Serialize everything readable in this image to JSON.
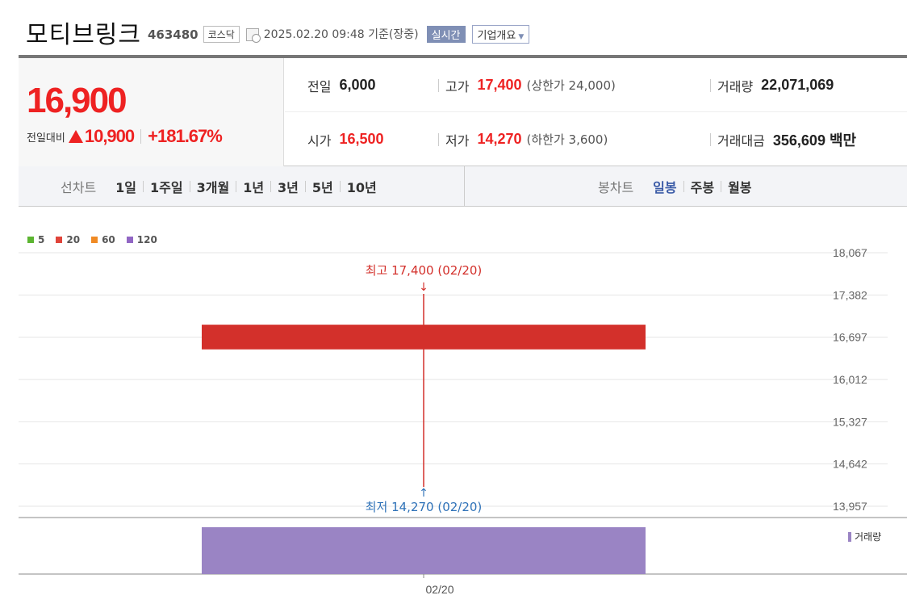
{
  "header": {
    "name": "모티브링크",
    "code": "463480",
    "market": "코스닥",
    "date": "2025.02.20 09:48  기준(장중)",
    "live": "실시간",
    "overview": "기업개요"
  },
  "summary": {
    "price": "16,900",
    "change_label": "전일대비",
    "change_amount": "10,900",
    "change_percent": "+181.67%",
    "prev_label": "전일",
    "prev": "6,000",
    "high_label": "고가",
    "high": "17,400",
    "upper_limit": "(상한가 24,000)",
    "volume_label": "거래량",
    "volume": "22,071,069",
    "open_label": "시가",
    "open": "16,500",
    "low_label": "저가",
    "low": "14,270",
    "lower_limit": "(하한가 3,600)",
    "amount_label": "거래대금",
    "amount": "356,609 백만"
  },
  "tabs": {
    "line_title": "선차트",
    "line_tabs": [
      "1일",
      "1주일",
      "3개월",
      "1년",
      "3년",
      "5년",
      "10년"
    ],
    "candle_title": "봉차트",
    "candle_tabs": [
      "일봉",
      "주봉",
      "월봉"
    ],
    "active_candle": "일봉"
  },
  "chart_data": {
    "type": "candlestick",
    "legend": [
      {
        "label": "5",
        "color": "#5cb531"
      },
      {
        "label": "20",
        "color": "#e0443a"
      },
      {
        "label": "60",
        "color": "#f08a24"
      },
      {
        "label": "120",
        "color": "#9166c4"
      }
    ],
    "y_ticks": [
      "18,067",
      "17,382",
      "16,697",
      "16,012",
      "15,327",
      "14,642",
      "13,957"
    ],
    "ylim": [
      13957,
      18067
    ],
    "x_ticks": [
      "02/20"
    ],
    "candles": [
      {
        "date": "02/20",
        "open": 16500,
        "high": 17400,
        "low": 14270,
        "close": 16900
      }
    ],
    "high_annotation": "최고 17,400 (02/20)",
    "low_annotation": "최저 14,270 (02/20)",
    "volume_label": "거래량",
    "volume": [
      {
        "date": "02/20",
        "value": 22071069
      }
    ],
    "colors": {
      "up": "#d3302b",
      "high_text": "#d3302b",
      "low_text": "#2f72b8",
      "volume": "#9a84c4",
      "grid": "#e6e6e6"
    }
  }
}
